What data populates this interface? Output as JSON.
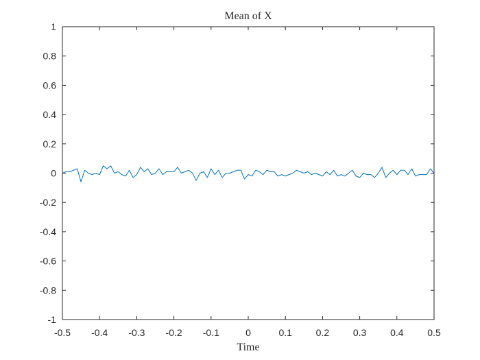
{
  "chart_data": {
    "type": "line",
    "title": "Mean of X",
    "xlabel": "Time",
    "ylabel": "",
    "xlim": [
      -0.5,
      0.5
    ],
    "ylim": [
      -1,
      1
    ],
    "grid": false,
    "x_ticks": [
      -0.5,
      -0.4,
      -0.3,
      -0.2,
      -0.1,
      0,
      0.1,
      0.2,
      0.3,
      0.4,
      0.5
    ],
    "x_tick_labels": [
      "-0.5",
      "-0.4",
      "-0.3",
      "-0.2",
      "-0.1",
      "0",
      "0.1",
      "0.2",
      "0.3",
      "0.4",
      "0.5"
    ],
    "y_ticks": [
      -1,
      -0.8,
      -0.6,
      -0.4,
      -0.2,
      0,
      0.2,
      0.4,
      0.6,
      0.8,
      1
    ],
    "y_tick_labels": [
      "-1",
      "-0.8",
      "-0.6",
      "-0.4",
      "-0.2",
      "0",
      "0.2",
      "0.4",
      "0.6",
      "0.8",
      "1"
    ],
    "series_color": "#0072bd",
    "series": [
      {
        "x": [
          -0.5,
          -0.49,
          -0.48,
          -0.47,
          -0.46,
          -0.45,
          -0.44,
          -0.43,
          -0.42,
          -0.41,
          -0.4,
          -0.39,
          -0.38,
          -0.37,
          -0.36,
          -0.35,
          -0.34,
          -0.33,
          -0.32,
          -0.31,
          -0.3,
          -0.29,
          -0.28,
          -0.27,
          -0.26,
          -0.25,
          -0.24,
          -0.23,
          -0.22,
          -0.21,
          -0.2,
          -0.19,
          -0.18,
          -0.17,
          -0.16,
          -0.15,
          -0.14,
          -0.13,
          -0.12,
          -0.11,
          -0.1,
          -0.09,
          -0.08,
          -0.07,
          -0.06,
          -0.05,
          -0.04,
          -0.03,
          -0.02,
          -0.01,
          0,
          0.01,
          0.02,
          0.03,
          0.04,
          0.05,
          0.06,
          0.07,
          0.08,
          0.09,
          0.1,
          0.11,
          0.12,
          0.13,
          0.14,
          0.15,
          0.16,
          0.17,
          0.18,
          0.19,
          0.2,
          0.21,
          0.22,
          0.23,
          0.24,
          0.25,
          0.26,
          0.27,
          0.28,
          0.29,
          0.3,
          0.31,
          0.32,
          0.33,
          0.34,
          0.35,
          0.36,
          0.37,
          0.38,
          0.39,
          0.4,
          0.41,
          0.42,
          0.43,
          0.44,
          0.45,
          0.46,
          0.47,
          0.48,
          0.49,
          0.5
        ],
        "values": [
          0,
          0.01,
          0.01,
          0.02,
          0.03,
          -0.06,
          0.02,
          0,
          -0.01,
          0,
          -0.01,
          0.05,
          0.03,
          0.05,
          0,
          0.01,
          -0.01,
          -0.02,
          0.02,
          -0.03,
          -0.01,
          0.04,
          0.01,
          0.03,
          -0.01,
          0,
          0.03,
          -0.01,
          0.01,
          0.01,
          0.01,
          0.04,
          0,
          0.01,
          0.02,
          0,
          -0.05,
          0,
          0.01,
          -0.03,
          0.03,
          -0.01,
          0.02,
          -0.03,
          0,
          0,
          0.01,
          0.02,
          0.02,
          -0.04,
          -0.01,
          -0.02,
          0.02,
          0.01,
          -0.01,
          0.02,
          0.01,
          0.01,
          -0.02,
          -0.01,
          -0.02,
          -0.01,
          0,
          0.02,
          0.01,
          0,
          0.01,
          -0.01,
          0,
          -0.01,
          -0.02,
          0.01,
          -0.01,
          0.02,
          -0.02,
          -0.01,
          -0.02,
          0,
          0.02,
          -0.02,
          -0.03,
          0,
          -0.01,
          -0.01,
          -0.03,
          0,
          0.04,
          -0.03,
          0,
          0.02,
          -0.01,
          0.02,
          0.02,
          -0.01,
          0.03,
          -0.02,
          -0.01,
          -0.01,
          -0.01,
          0.03,
          0
        ]
      }
    ]
  }
}
